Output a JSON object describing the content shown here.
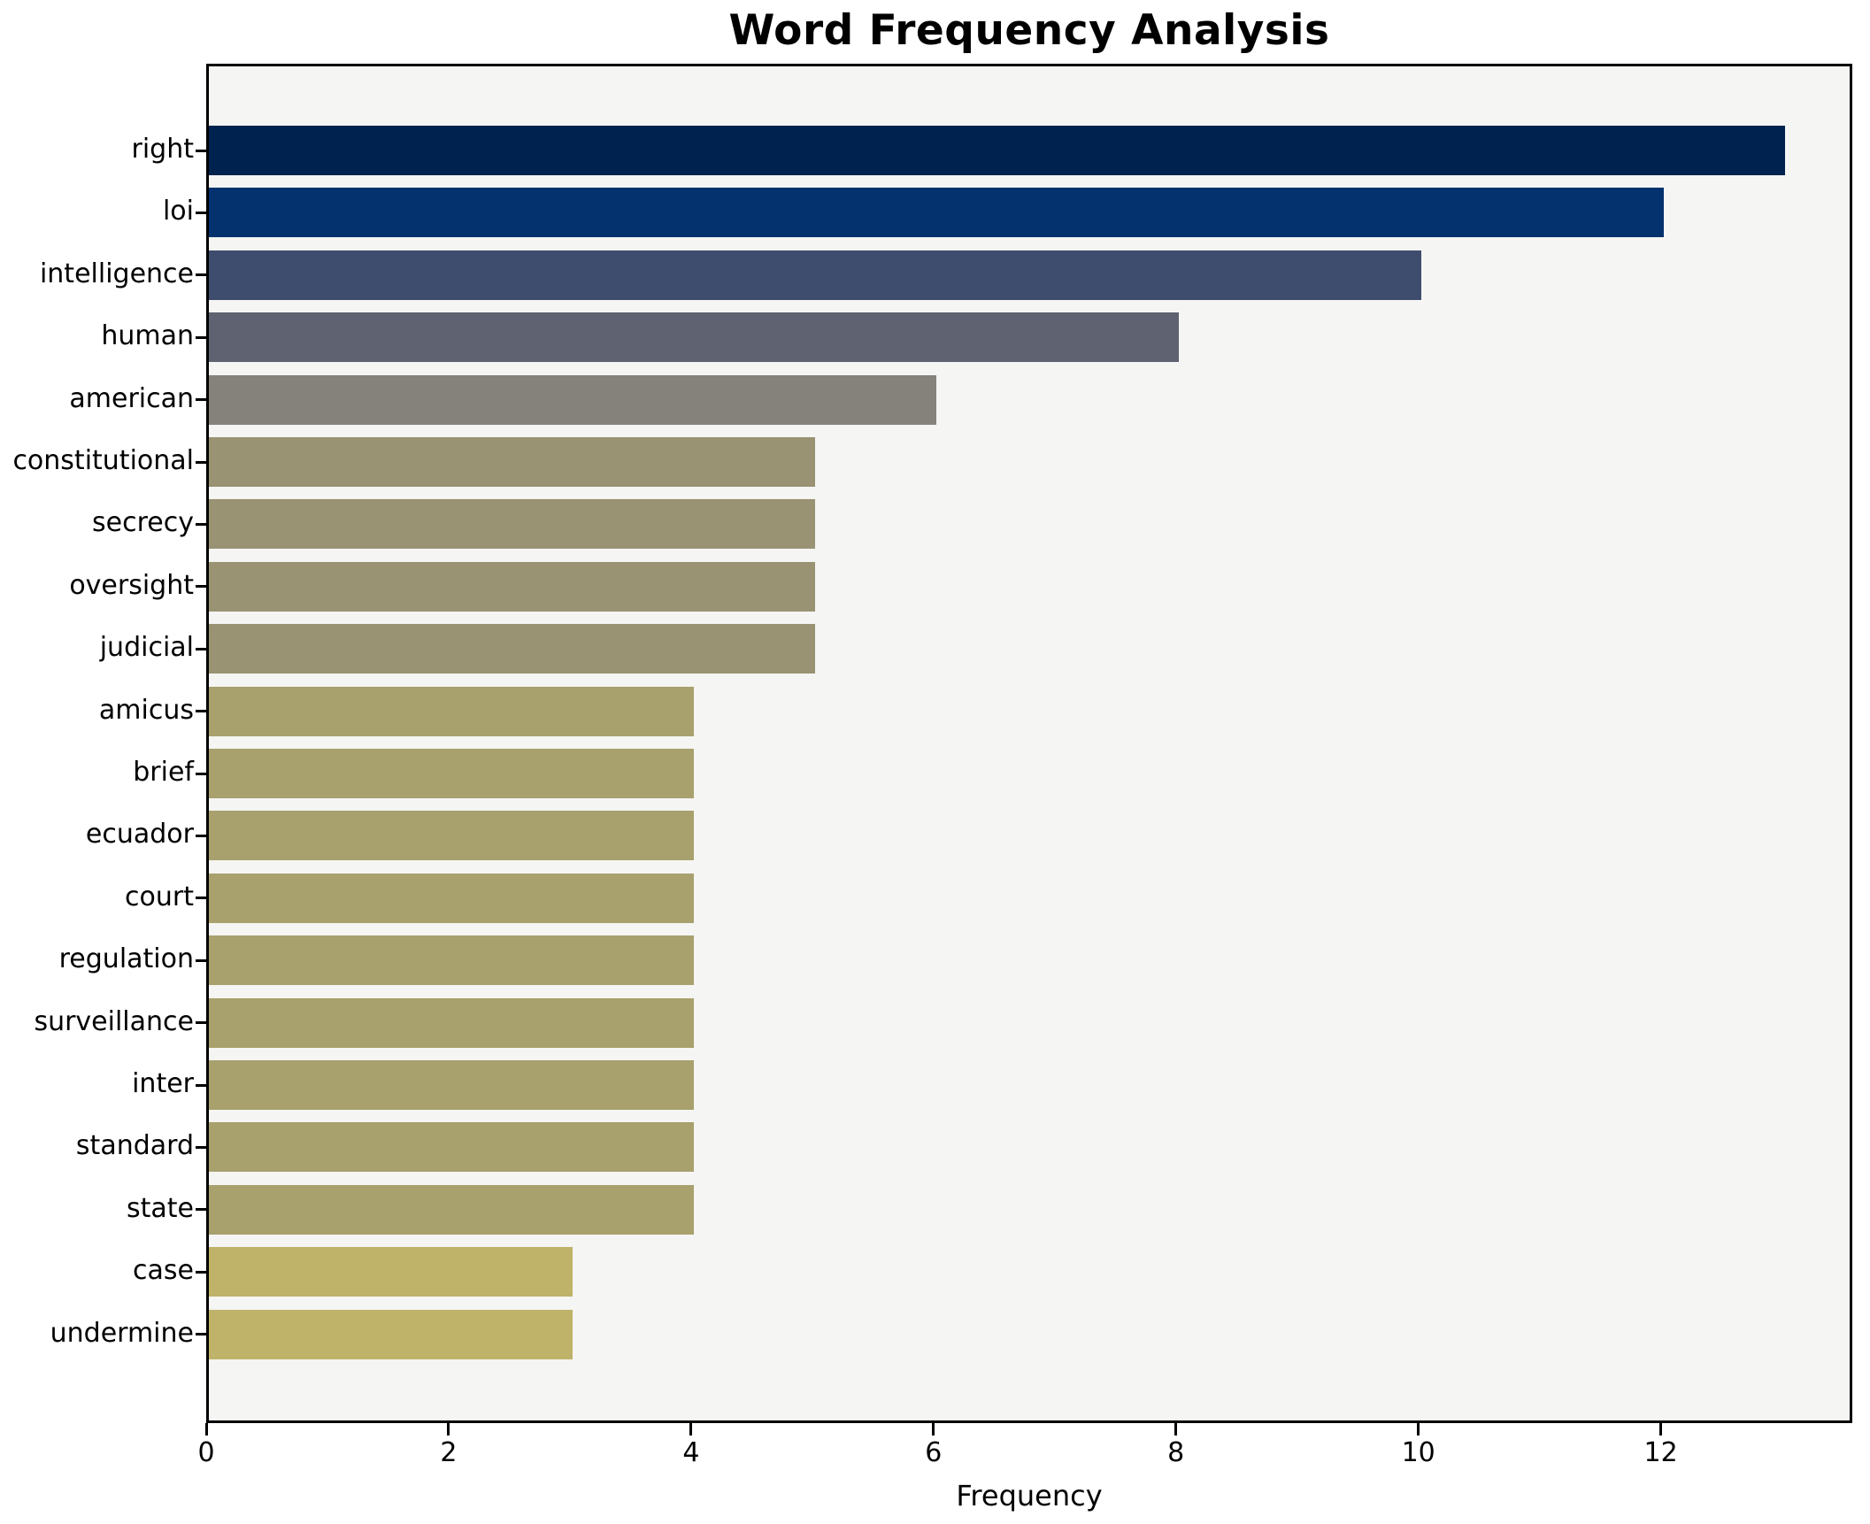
{
  "chart_data": {
    "type": "bar",
    "orientation": "horizontal",
    "title": "Word Frequency Analysis",
    "xlabel": "Frequency",
    "ylabel": "",
    "categories": [
      "right",
      "loi",
      "intelligence",
      "human",
      "american",
      "constitutional",
      "secrecy",
      "oversight",
      "judicial",
      "amicus",
      "brief",
      "ecuador",
      "court",
      "regulation",
      "surveillance",
      "inter",
      "standard",
      "state",
      "case",
      "undermine"
    ],
    "values": [
      13,
      12,
      10,
      8,
      6,
      5,
      5,
      5,
      5,
      4,
      4,
      4,
      4,
      4,
      4,
      4,
      4,
      4,
      3,
      3
    ],
    "bar_colors": [
      "#00224e",
      "#04326e",
      "#3e4c6d",
      "#5f6270",
      "#85827b",
      "#999273",
      "#999273",
      "#999273",
      "#999273",
      "#a8a06d",
      "#a8a06d",
      "#a8a06d",
      "#a8a06d",
      "#a8a06d",
      "#a8a06d",
      "#a8a06d",
      "#a8a06d",
      "#a8a06d",
      "#bfb269",
      "#bfb269"
    ],
    "x_ticks": [
      0,
      2,
      4,
      6,
      8,
      10,
      12
    ],
    "x_tick_labels": [
      "0",
      "2",
      "4",
      "6",
      "8",
      "10",
      "12"
    ],
    "xlim": [
      0,
      13.58
    ],
    "grid": false,
    "plot_background": "#f5f5f3",
    "figure_background": "#ffffff",
    "spine_color": "#000000",
    "text_color": "#000000"
  }
}
